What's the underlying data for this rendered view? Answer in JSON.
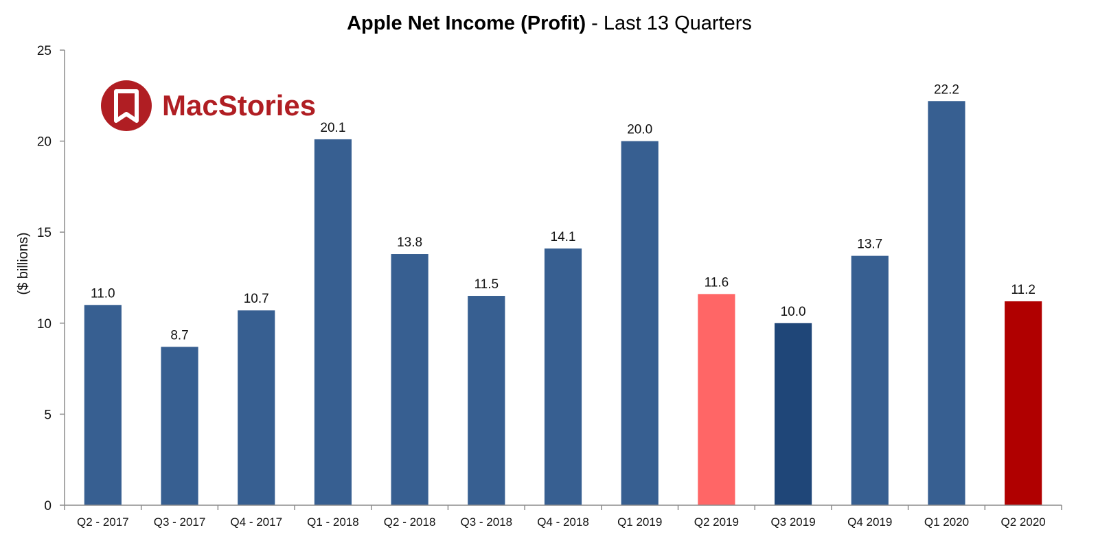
{
  "chart_data": {
    "type": "bar",
    "title_bold": "Apple Net Income (Profit)",
    "title_rest": " - Last 13 Quarters",
    "xlabel": "",
    "ylabel": "($ billions)",
    "ylim": [
      0,
      25
    ],
    "yticks": [
      0,
      5,
      10,
      15,
      20,
      25
    ],
    "grid": false,
    "categories": [
      "Q2 - 2017",
      "Q3 - 2017",
      "Q4 - 2017",
      "Q1 - 2018",
      "Q2 - 2018",
      "Q3 - 2018",
      "Q4 - 2018",
      "Q1 2019",
      "Q2 2019",
      "Q3 2019",
      "Q4 2019",
      "Q1 2020",
      "Q2 2020"
    ],
    "values": [
      11.0,
      8.7,
      10.7,
      20.1,
      13.8,
      11.5,
      14.1,
      20.0,
      11.6,
      10.0,
      13.7,
      22.2,
      11.2
    ],
    "value_labels": [
      "11.0",
      "8.7",
      "10.7",
      "20.1",
      "13.8",
      "11.5",
      "14.1",
      "20.0",
      "11.6",
      "10.0",
      "13.7",
      "22.2",
      "11.2"
    ],
    "colors": [
      "#375f91",
      "#375f91",
      "#375f91",
      "#375f91",
      "#375f91",
      "#375f91",
      "#375f91",
      "#375f91",
      "#ff6666",
      "#1f4678",
      "#375f91",
      "#375f91",
      "#b00000"
    ]
  },
  "logo": {
    "text": "MacStories",
    "color": "#b01e23"
  }
}
